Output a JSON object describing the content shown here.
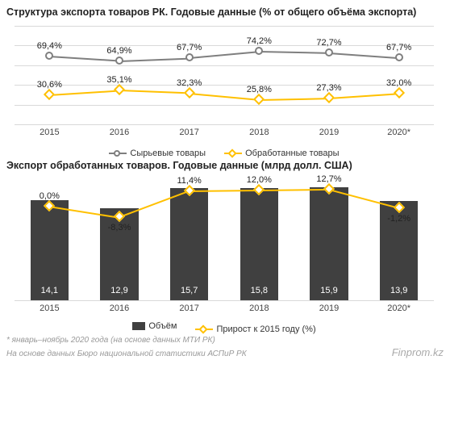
{
  "chart1": {
    "type": "line",
    "title": "Структура экспорта товаров РК. Годовые данные (% от общего объёма экспорта)",
    "categories": [
      "2015",
      "2016",
      "2017",
      "2018",
      "2019",
      "2020*"
    ],
    "series": {
      "raw": {
        "label": "Сырьевые товары",
        "color": "#7f7f7f",
        "marker": "circle",
        "values": [
          69.4,
          64.9,
          67.7,
          74.2,
          72.7,
          67.7
        ],
        "labels": [
          "69,4%",
          "64,9%",
          "67,7%",
          "74,2%",
          "72,7%",
          "67,7%"
        ]
      },
      "processed": {
        "label": "Обработанные товары",
        "color": "#ffc000",
        "marker": "diamond",
        "values": [
          30.6,
          35.1,
          32.3,
          25.8,
          27.3,
          32.0
        ],
        "labels": [
          "30,6%",
          "35,1%",
          "32,3%",
          "25,8%",
          "27,3%",
          "32,0%"
        ]
      }
    },
    "ylim": [
      0,
      100
    ],
    "grid_steps": 5,
    "grid_color": "#d9d9d9",
    "background_color": "#ffffff",
    "label_fontsize": 11
  },
  "chart2": {
    "type": "bar_line",
    "title": "Экспорт обработанных товаров. Годовые данные (млрд долл. США)",
    "categories": [
      "2015",
      "2016",
      "2017",
      "2018",
      "2019",
      "2020*"
    ],
    "bars": {
      "label": "Объём",
      "color": "#404040",
      "values": [
        14.1,
        12.9,
        15.7,
        15.8,
        15.9,
        13.9
      ],
      "labels": [
        "14,1",
        "12,9",
        "15,7",
        "15,8",
        "15,9",
        "13,9"
      ],
      "bar_width_frac": 0.55
    },
    "line": {
      "label": "Прирост к 2015 году (%)",
      "color": "#ffc000",
      "marker": "diamond",
      "values": [
        0.0,
        -8.3,
        11.4,
        12.0,
        12.7,
        -1.2
      ],
      "labels": [
        "0,0%",
        "-8,3%",
        "11,4%",
        "12,0%",
        "12,7%",
        "-1,2%"
      ]
    },
    "bar_ymax": 17,
    "grid_color": "#d9d9d9",
    "background_color": "#ffffff",
    "label_fontsize": 11
  },
  "footnote": "* январь–ноябрь 2020 года (на основе данных МТИ РК)",
  "source": "На основе данных Бюро национальной статистики АСПиР РК",
  "attribution": "Finprom.kz"
}
